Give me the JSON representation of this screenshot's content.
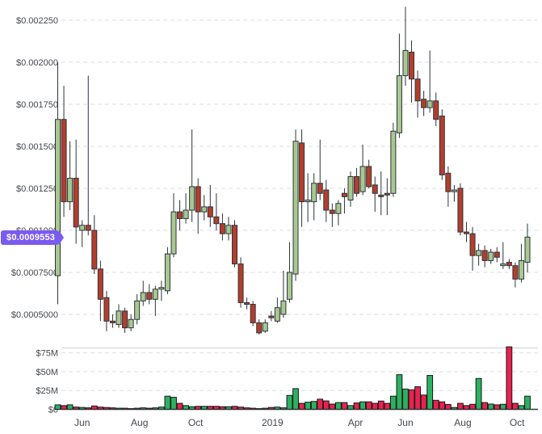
{
  "price_tag": {
    "value": "$0.0009553",
    "color": "#7a5bef"
  },
  "chart_data": {
    "type": "candlestick",
    "title": "",
    "xlabel": "",
    "ylabel": "",
    "grid": "horizontal-dashed",
    "y_axis": {
      "labels": [
        "$0.002250",
        "$0.002000",
        "$0.001750",
        "$0.001500",
        "$0.001250",
        "$0.001000",
        "$0.0007500",
        "$0.0005000"
      ],
      "values": [
        0.00225,
        0.002,
        0.00175,
        0.0015,
        0.00125,
        0.001,
        0.00075,
        0.0005
      ],
      "ylim": [
        0.00035,
        0.00237
      ]
    },
    "volume_axis": {
      "labels": [
        "$75M",
        "$50M",
        "$25M",
        "$0"
      ],
      "values": [
        75,
        50,
        25,
        0
      ],
      "ylim": [
        0,
        90
      ]
    },
    "x_axis": {
      "labels": [
        {
          "text": "Jun",
          "index": 4.0
        },
        {
          "text": "Aug",
          "index": 13.4
        },
        {
          "text": "Oct",
          "index": 22.6
        },
        {
          "text": "2019",
          "index": 35.2
        },
        {
          "text": "Apr",
          "index": 48.8
        },
        {
          "text": "Jun",
          "index": 57.0
        },
        {
          "text": "Aug",
          "index": 66.4
        },
        {
          "text": "Oct",
          "index": 75.3
        }
      ]
    },
    "current_price": 0.0009553,
    "candles_note": "each candle = [open, high, low, close, volume_usd_millions]",
    "candles": [
      [
        0.00073,
        0.002,
        0.00056,
        0.00166,
        6
      ],
      [
        0.00166,
        0.00186,
        0.00108,
        0.00117,
        5
      ],
      [
        0.00117,
        0.00153,
        0.00112,
        0.00131,
        6
      ],
      [
        0.00131,
        0.00154,
        0.00092,
        0.00102,
        3
      ],
      [
        0.001,
        0.00106,
        0.0009,
        0.00103,
        2.5
      ],
      [
        0.00103,
        0.00192,
        0.00097,
        0.001,
        2
      ],
      [
        0.001,
        0.00109,
        0.00074,
        0.00077,
        4.5
      ],
      [
        0.00077,
        0.00082,
        0.00046,
        0.00059,
        3
      ],
      [
        0.0006,
        0.00064,
        0.0004,
        0.00046,
        2.5
      ],
      [
        0.00046,
        0.0005,
        0.00042,
        0.00045,
        2
      ],
      [
        0.00044,
        0.00056,
        0.00042,
        0.00052,
        1.5
      ],
      [
        0.00052,
        0.00054,
        0.00039,
        0.00042,
        1.5
      ],
      [
        0.00042,
        0.0005,
        0.0004,
        0.00047,
        1
      ],
      [
        0.00047,
        0.00062,
        0.00044,
        0.00058,
        1.5
      ],
      [
        0.00058,
        0.0007,
        0.00055,
        0.00063,
        2
      ],
      [
        0.00063,
        0.00068,
        0.00056,
        0.00059,
        1.5
      ],
      [
        0.00059,
        0.00067,
        0.00049,
        0.00065,
        2
      ],
      [
        0.00065,
        0.0007,
        0.00058,
        0.00066,
        3
      ],
      [
        0.00064,
        0.0009,
        0.00062,
        0.00086,
        17.5
      ],
      [
        0.00086,
        0.00122,
        0.00084,
        0.00111,
        16
      ],
      [
        0.00111,
        0.00118,
        0.001,
        0.00107,
        8
      ],
      [
        0.00107,
        0.00122,
        0.00104,
        0.00112,
        5
      ],
      [
        0.00112,
        0.0016,
        0.00105,
        0.00126,
        3.5
      ],
      [
        0.00126,
        0.00131,
        0.00098,
        0.00111,
        4
      ],
      [
        0.00111,
        0.00121,
        0.00106,
        0.00114,
        4
      ],
      [
        0.00114,
        0.00127,
        0.00102,
        0.00108,
        4
      ],
      [
        0.00108,
        0.00122,
        0.001,
        0.00104,
        4
      ],
      [
        0.00104,
        0.0011,
        0.00094,
        0.00098,
        3.5
      ],
      [
        0.00098,
        0.00108,
        0.00094,
        0.00103,
        3.5
      ],
      [
        0.00103,
        0.00106,
        0.00078,
        0.0008,
        4
      ],
      [
        0.0008,
        0.00084,
        0.00054,
        0.00057,
        3
      ],
      [
        0.00057,
        0.0006,
        0.00053,
        0.00056,
        2
      ],
      [
        0.00056,
        0.00058,
        0.00043,
        0.00045,
        1.5
      ],
      [
        0.00045,
        0.00047,
        0.00038,
        0.00039,
        1
      ],
      [
        0.0004,
        0.00047,
        0.00039,
        0.00045,
        1.5
      ],
      [
        0.00049,
        0.00052,
        0.00046,
        0.00048,
        2.5
      ],
      [
        0.00046,
        0.0006,
        0.00045,
        0.00054,
        3
      ],
      [
        0.0005,
        0.00076,
        0.00048,
        0.00058,
        2
      ],
      [
        0.00059,
        0.00093,
        0.00057,
        0.00075,
        18.5
      ],
      [
        0.00074,
        0.0016,
        0.0007,
        0.00153,
        27.5
      ],
      [
        0.00152,
        0.0016,
        0.00102,
        0.00117,
        8
      ],
      [
        0.00117,
        0.00134,
        0.00105,
        0.00118,
        9.5
      ],
      [
        0.00117,
        0.00134,
        0.00106,
        0.00128,
        10.5
      ],
      [
        0.00128,
        0.00154,
        0.00118,
        0.00122,
        13.5
      ],
      [
        0.00124,
        0.0013,
        0.00105,
        0.00112,
        11.2
      ],
      [
        0.00112,
        0.00116,
        0.00102,
        0.0011,
        7
      ],
      [
        0.0011,
        0.00118,
        0.00103,
        0.00116,
        9
      ],
      [
        0.00122,
        0.00125,
        0.0011,
        0.0012,
        9
      ],
      [
        0.00118,
        0.00135,
        0.00114,
        0.00132,
        5
      ],
      [
        0.00132,
        0.00137,
        0.0012,
        0.00122,
        8.5
      ],
      [
        0.00123,
        0.00151,
        0.00121,
        0.00138,
        10
      ],
      [
        0.00138,
        0.00142,
        0.00125,
        0.00126,
        10
      ],
      [
        0.00127,
        0.00132,
        0.00111,
        0.00122,
        8
      ],
      [
        0.00121,
        0.00135,
        0.00109,
        0.0012,
        11
      ],
      [
        0.00122,
        0.00131,
        0.00109,
        0.00121,
        8
      ],
      [
        0.00122,
        0.00164,
        0.0012,
        0.00159,
        17.5
      ],
      [
        0.00158,
        0.00217,
        0.00155,
        0.00192,
        46
      ],
      [
        0.00192,
        0.00233,
        0.00186,
        0.00207,
        27
      ],
      [
        0.00206,
        0.00213,
        0.00176,
        0.0019,
        26
      ],
      [
        0.0019,
        0.00195,
        0.00167,
        0.00177,
        30
      ],
      [
        0.00178,
        0.00183,
        0.00168,
        0.00173,
        19
      ],
      [
        0.00173,
        0.00207,
        0.0017,
        0.00177,
        45
      ],
      [
        0.00177,
        0.00182,
        0.00162,
        0.00166,
        12
      ],
      [
        0.00168,
        0.00172,
        0.0013,
        0.00133,
        10
      ],
      [
        0.00134,
        0.00138,
        0.00114,
        0.00123,
        6.5
      ],
      [
        0.00123,
        0.00127,
        0.00117,
        0.00124,
        2.5
      ],
      [
        0.00125,
        0.00128,
        0.00097,
        0.00099,
        8
      ],
      [
        0.00099,
        0.00105,
        0.00093,
        0.00098,
        5
      ],
      [
        0.00098,
        0.00102,
        0.00076,
        0.00085,
        6.7
      ],
      [
        0.00085,
        0.00092,
        0.00079,
        0.00088,
        41
      ],
      [
        0.00088,
        0.00091,
        0.00078,
        0.00082,
        9
      ],
      [
        0.00082,
        0.00089,
        0.0008,
        0.00087,
        7
      ],
      [
        0.00087,
        0.0009,
        0.00081,
        0.00084,
        6
      ],
      [
        0.00079,
        0.00093,
        0.00077,
        0.0008,
        6.7
      ],
      [
        0.00081,
        0.00083,
        0.00077,
        0.00079,
        83
      ],
      [
        0.00079,
        0.00081,
        0.00066,
        0.00071,
        8
      ],
      [
        0.00071,
        0.00092,
        0.00069,
        0.00082,
        5
      ],
      [
        0.00081,
        0.00104,
        0.00075,
        0.00096,
        17.5
      ]
    ],
    "colors": {
      "candle_up_fill": "#a9c88f",
      "candle_down_fill": "#b43e2a",
      "candle_border": "#2c343c",
      "wick": "#2c343c",
      "volume_up": "#2bb25f",
      "volume_down": "#e9224d",
      "volume_border": "#14181c",
      "grid": "#dcdee3",
      "separator": "#cdd0d5",
      "zero_axis": "#30353a",
      "axis_text": "#42474d",
      "price_tag_bg": "#7a5bef",
      "price_tag_text": "#ffffff"
    }
  }
}
